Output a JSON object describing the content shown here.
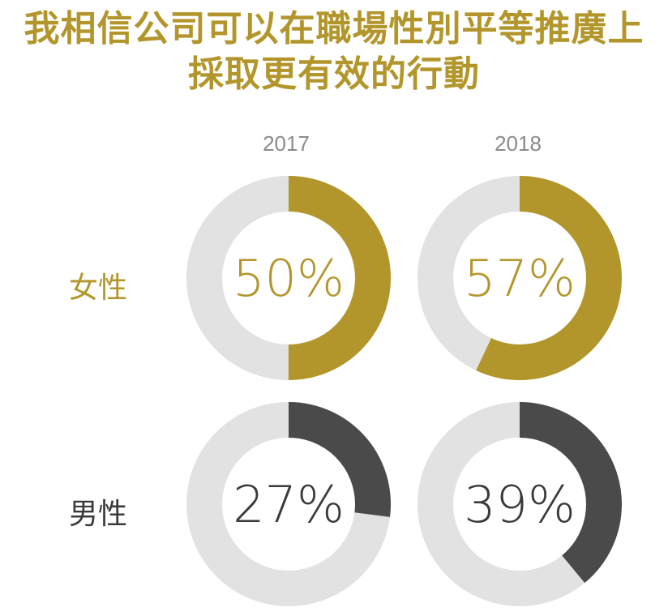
{
  "title": {
    "line1": "我相信公司可以在職場性別平等推廣上",
    "line2": "採取更有效的行動"
  },
  "colors": {
    "title": "#b3962b",
    "female": "#b3962b",
    "male": "#4a4a4a",
    "track": "#e2e2e2",
    "year_label": "#8b8b8b"
  },
  "chart_data": {
    "type": "pie",
    "subtype": "donut",
    "categories": [
      "2017",
      "2018"
    ],
    "series": [
      {
        "name": "女性",
        "values": [
          50,
          57
        ],
        "labels": [
          "50%",
          "57%"
        ],
        "color": "#b3962b"
      },
      {
        "name": "男性",
        "values": [
          27,
          39
        ],
        "labels": [
          "27%",
          "39%"
        ],
        "color": "#4a4a4a"
      }
    ],
    "unit": "%",
    "legend": "row labels on left"
  }
}
